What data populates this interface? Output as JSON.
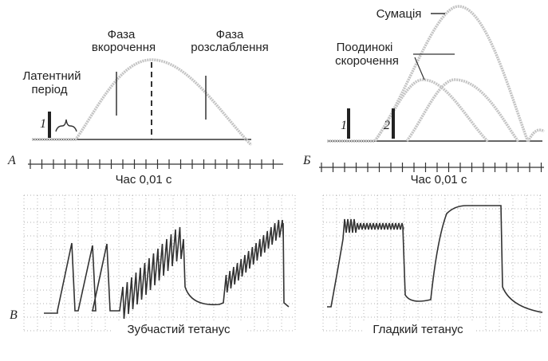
{
  "panel_a": {
    "latent": [
      "Латентний",
      "період"
    ],
    "shortening": [
      "Фаза",
      "вкорочення"
    ],
    "relaxation": [
      "Фаза",
      "розслаблення"
    ],
    "stimulus": "1",
    "letter": "А",
    "time_label": "Час 0,01 с"
  },
  "panel_b": {
    "summation": "Сумація",
    "single": [
      "Поодинокі",
      "скорочення"
    ],
    "stimuli": [
      "1",
      "2"
    ],
    "letter": "Б",
    "time_label": "Час 0,01 с"
  },
  "panel_c": {
    "letter": "В",
    "captions": [
      "Зубчастий тетанус",
      "Гладкий тетанус"
    ]
  }
}
